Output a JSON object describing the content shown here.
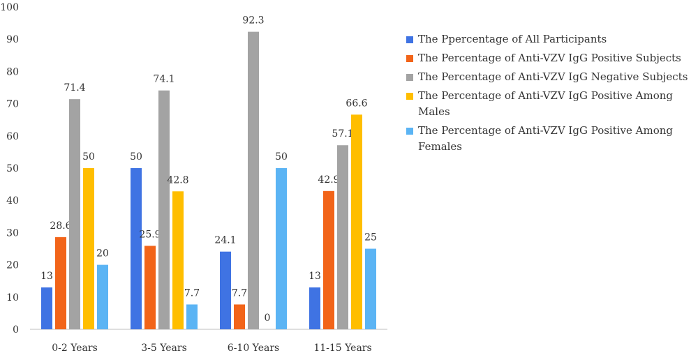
{
  "chart_data": {
    "type": "bar",
    "categories": [
      "0-2 Years",
      "3-5 Years",
      "6-10 Years",
      "11-15 Years"
    ],
    "series": [
      {
        "name": "The Ppercentage of All Participants",
        "color": "#3F73E3",
        "values": [
          13,
          50,
          24.1,
          13
        ],
        "labels": [
          "13",
          "50",
          "24.1",
          "13"
        ]
      },
      {
        "name": "The Percentage of Anti-VZV IgG Positive Subjects",
        "color": "#F26419",
        "values": [
          28.6,
          25.9,
          7.7,
          42.9
        ],
        "labels": [
          "28.6",
          "25.9",
          "7.7",
          "42.9"
        ]
      },
      {
        "name": "The Percentage of Anti-VZV IgG Negative Subjects",
        "color": "#A3A3A3",
        "values": [
          71.4,
          74.1,
          92.3,
          57.1
        ],
        "labels": [
          "71.4",
          "74.1",
          "92.3",
          "57.1"
        ]
      },
      {
        "name": "The Percentage of Anti-VZV IgG Positive Among Males",
        "color": "#FFBE00",
        "values": [
          50,
          42.8,
          0,
          66.6
        ],
        "labels": [
          "50",
          "42.8",
          "0",
          "66.6"
        ]
      },
      {
        "name": "The Percentage of Anti-VZV IgG Positive Among Females",
        "color": "#5BB4F4",
        "values": [
          20,
          7.7,
          50,
          25
        ],
        "labels": [
          "20",
          "7.7",
          "50",
          "25"
        ]
      }
    ],
    "yticks": [
      "0",
      "10",
      "20",
      "30",
      "40",
      "50",
      "60",
      "70",
      "80",
      "90",
      "100"
    ],
    "ylim": [
      0,
      100
    ],
    "grid": false,
    "legend": "right",
    "title": "",
    "xlabel": "",
    "ylabel": ""
  }
}
